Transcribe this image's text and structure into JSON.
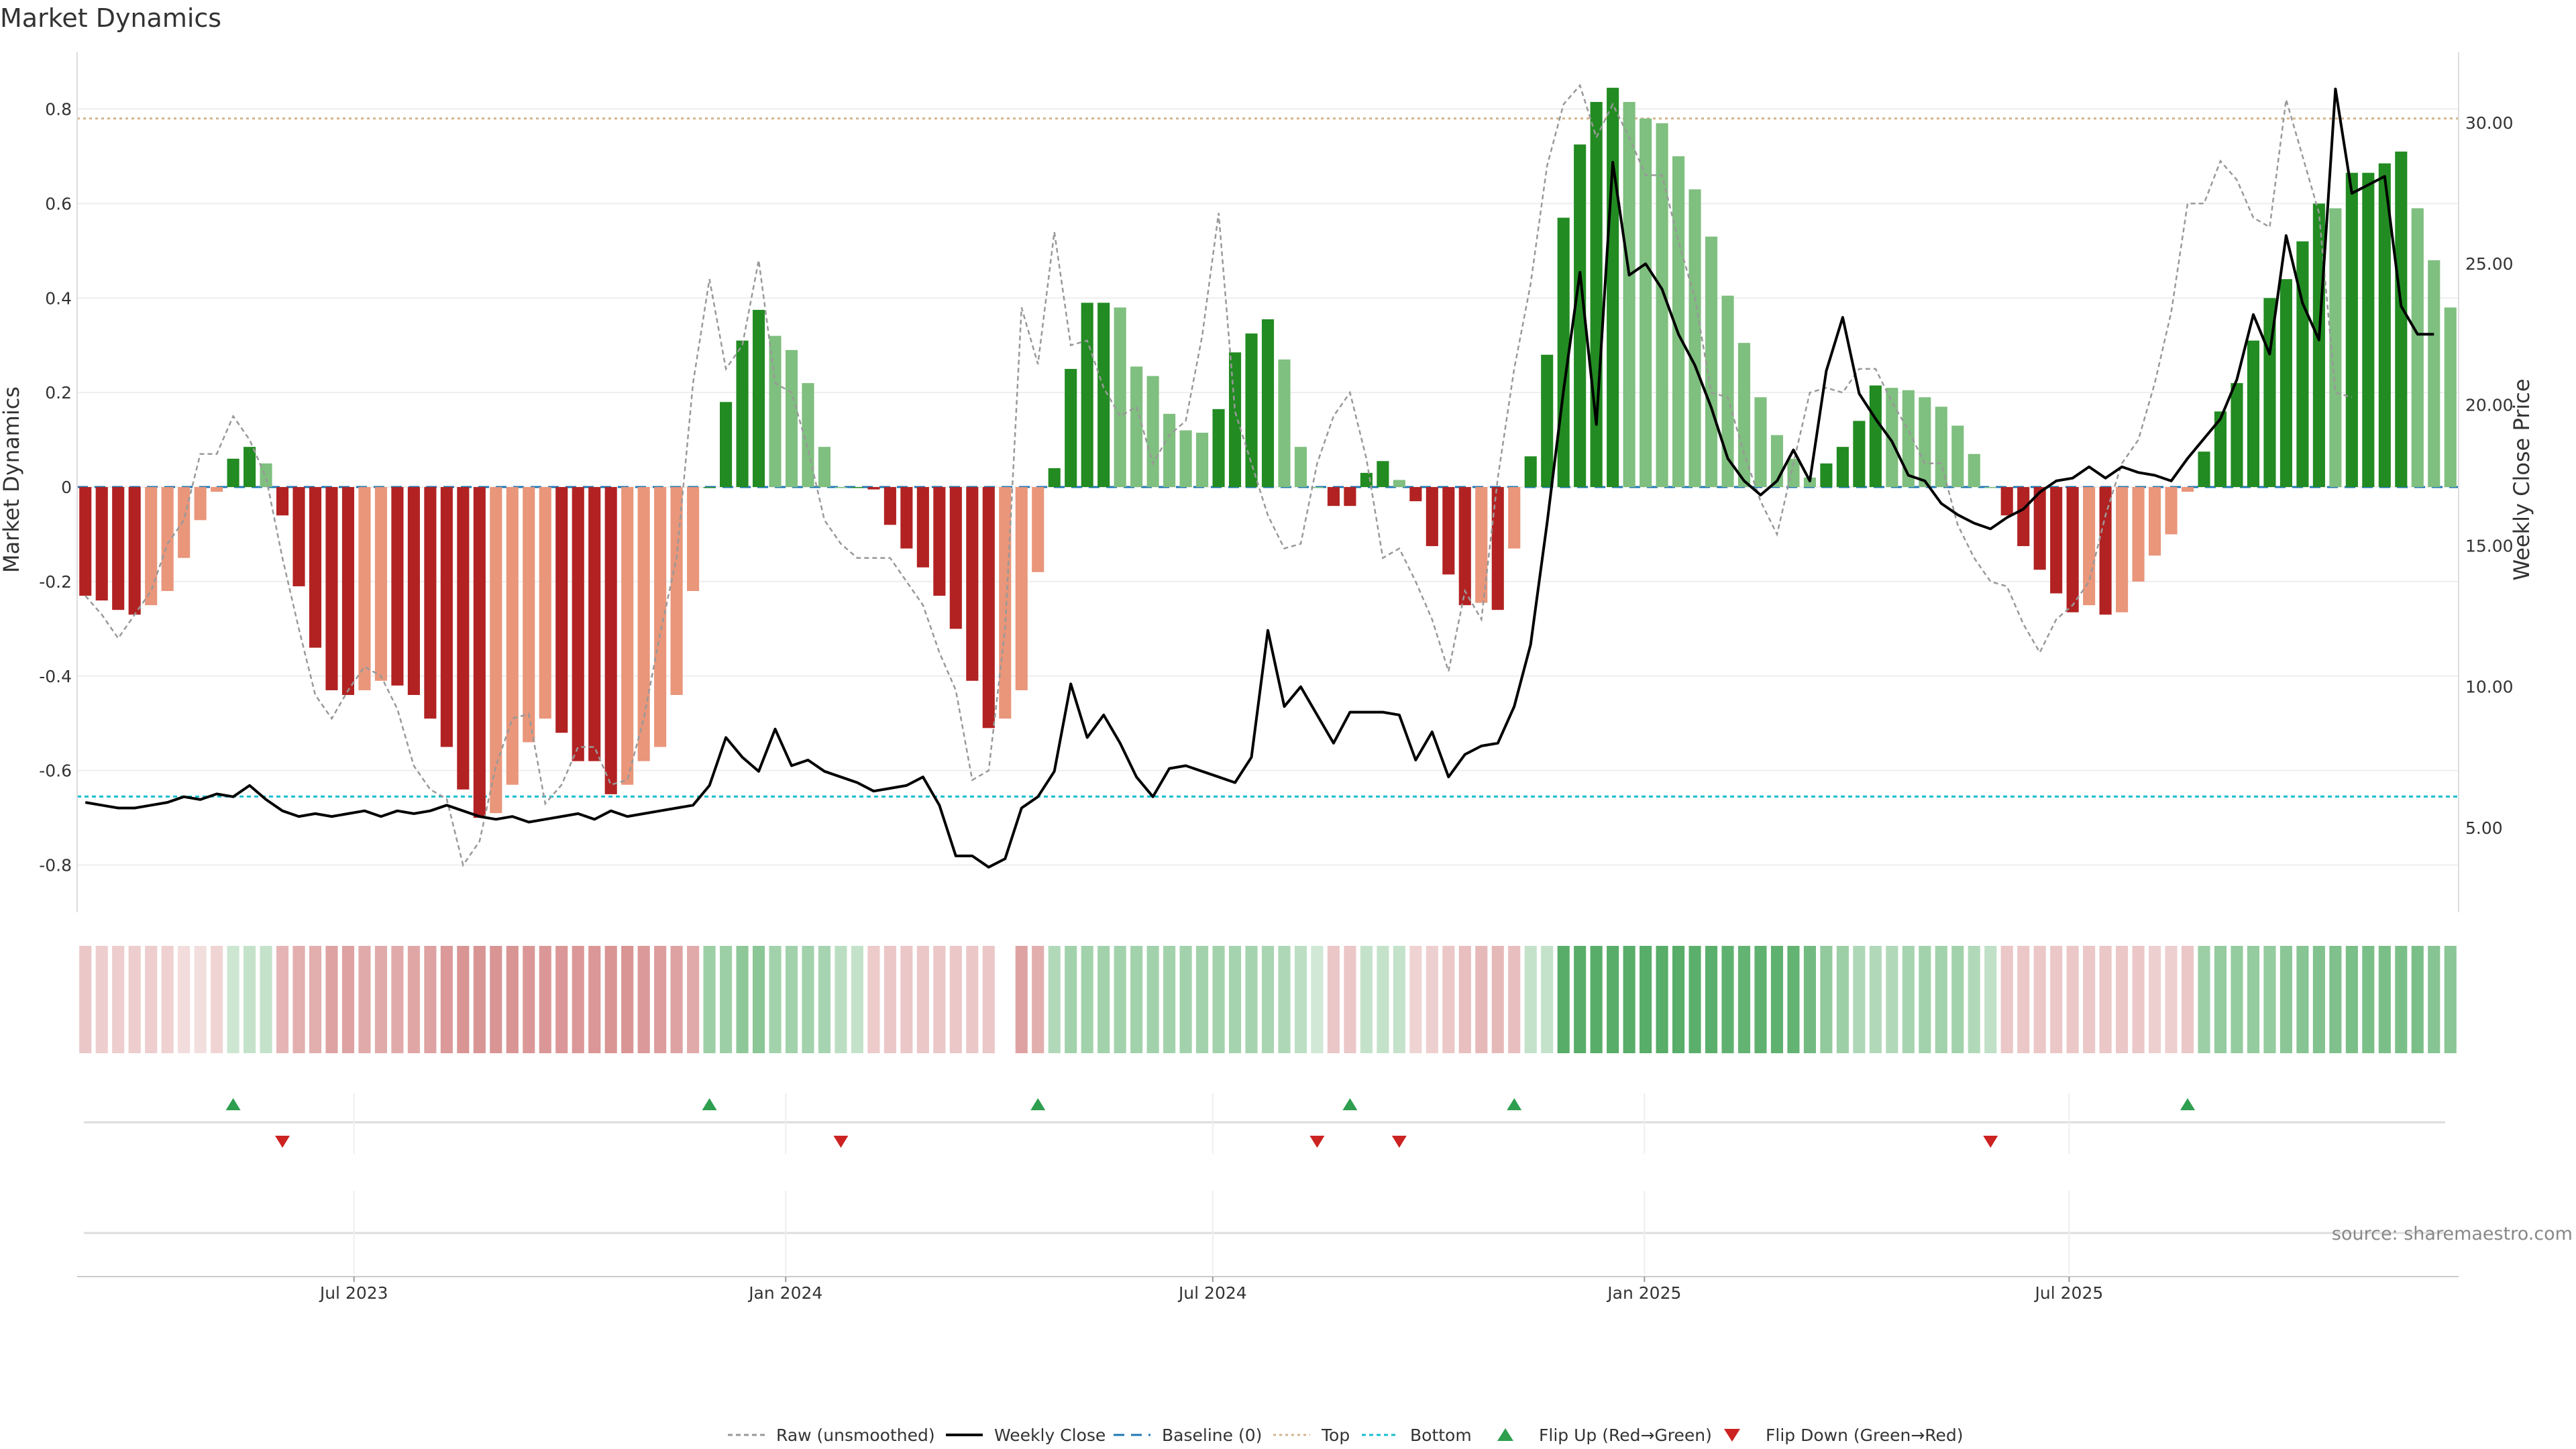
{
  "chart_data": {
    "type": "bar",
    "title": "Market Dynamics",
    "ylabel": "Market Dynamics",
    "y2label": "Weekly Close Price",
    "ylim": [
      -0.9,
      0.92
    ],
    "y2lim": [
      2.0,
      32.5
    ],
    "yticks": [
      "0.8",
      "0.6",
      "0.4",
      "0.2",
      "0",
      "-0.2",
      "-0.4",
      "-0.6",
      "-0.8"
    ],
    "ytick_values": [
      0.8,
      0.6,
      0.4,
      0.2,
      0,
      -0.2,
      -0.4,
      -0.6,
      -0.8
    ],
    "y2ticks": [
      "30.00",
      "25.00",
      "20.00",
      "15.00",
      "10.00",
      "5.00"
    ],
    "y2tick_values": [
      30,
      25,
      20,
      15,
      10,
      5
    ],
    "x_start": "2023-03-05",
    "x_end": "2025-11-27",
    "x_step_days": 7,
    "xticks": [
      "Jul 2023",
      "Jan 2024",
      "Jul 2024",
      "Jan 2025",
      "Jul 2025"
    ],
    "xtick_dates": [
      "2023-07-01",
      "2024-01-01",
      "2024-07-01",
      "2025-01-01",
      "2025-07-01"
    ],
    "top_level": 0.78,
    "bottom_level": -0.655,
    "baseline": 0,
    "grid": true,
    "smoothed": [
      -0.23,
      -0.24,
      -0.26,
      -0.27,
      -0.25,
      -0.22,
      -0.15,
      -0.07,
      -0.01,
      0.06,
      0.085,
      0.05,
      -0.06,
      -0.21,
      -0.34,
      -0.43,
      -0.44,
      -0.43,
      -0.41,
      -0.42,
      -0.44,
      -0.49,
      -0.55,
      -0.64,
      -0.7,
      -0.69,
      -0.63,
      -0.54,
      -0.49,
      -0.52,
      -0.58,
      -0.58,
      -0.65,
      -0.63,
      -0.58,
      -0.55,
      -0.44,
      -0.22,
      0,
      0.18,
      0.31,
      0.375,
      0.32,
      0.29,
      0.22,
      0.085,
      0,
      0,
      -0.005,
      -0.08,
      -0.13,
      -0.17,
      -0.23,
      -0.3,
      -0.41,
      -0.51,
      -0.49,
      -0.43,
      -0.18,
      0.04,
      0.25,
      0.39,
      0.39,
      0.38,
      0.255,
      0.235,
      0.155,
      0.12,
      0.115,
      0.165,
      0.285,
      0.325,
      0.355,
      0.27,
      0.085,
      0,
      -0.04,
      -0.04,
      0.03,
      0.055,
      0.015,
      -0.03,
      -0.125,
      -0.185,
      -0.25,
      -0.245,
      -0.26,
      -0.13,
      0.065,
      0.28,
      0.57,
      0.725,
      0.815,
      0.845,
      0.815,
      0.78,
      0.77,
      0.7,
      0.63,
      0.53,
      0.405,
      0.305,
      0.19,
      0.11,
      0.06,
      0.02,
      0.05,
      0.085,
      0.14,
      0.215,
      0.21,
      0.205,
      0.19,
      0.17,
      0.13,
      0.07,
      0,
      -0.06,
      -0.125,
      -0.175,
      -0.225,
      -0.265,
      -0.25,
      -0.27,
      -0.265,
      -0.2,
      -0.145,
      -0.1,
      -0.01,
      0.075,
      0.16,
      0.22,
      0.31,
      0.4,
      0.44,
      0.52,
      0.6,
      0.59,
      0.665,
      0.665,
      0.685,
      0.71,
      0.59,
      0.48,
      0.38
    ],
    "raw": [
      -0.23,
      -0.27,
      -0.32,
      -0.27,
      -0.22,
      -0.12,
      -0.07,
      0.07,
      0.07,
      0.15,
      0.1,
      0.02,
      -0.15,
      -0.3,
      -0.44,
      -0.49,
      -0.43,
      -0.38,
      -0.4,
      -0.47,
      -0.59,
      -0.64,
      -0.66,
      -0.8,
      -0.75,
      -0.59,
      -0.49,
      -0.48,
      -0.67,
      -0.63,
      -0.55,
      -0.55,
      -0.63,
      -0.62,
      -0.49,
      -0.31,
      -0.15,
      0.22,
      0.44,
      0.25,
      0.3,
      0.48,
      0.22,
      0.2,
      0.08,
      -0.07,
      -0.12,
      -0.15,
      -0.15,
      -0.15,
      -0.2,
      -0.25,
      -0.35,
      -0.43,
      -0.62,
      -0.6,
      -0.3,
      0.38,
      0.26,
      0.54,
      0.3,
      0.31,
      0.21,
      0.15,
      0.17,
      0.05,
      0.11,
      0.14,
      0.32,
      0.58,
      0.16,
      0.05,
      -0.06,
      -0.13,
      -0.12,
      0.05,
      0.15,
      0.2,
      0.06,
      -0.15,
      -0.13,
      -0.2,
      -0.28,
      -0.39,
      -0.22,
      -0.28,
      0.02,
      0.25,
      0.43,
      0.68,
      0.81,
      0.85,
      0.74,
      0.81,
      0.74,
      0.66,
      0.66,
      0.52,
      0.4,
      0.2,
      0.19,
      0.07,
      -0.03,
      -0.1,
      0.05,
      0.2,
      0.21,
      0.2,
      0.25,
      0.25,
      0.18,
      0.12,
      0.05,
      0.05,
      -0.08,
      -0.15,
      -0.2,
      -0.21,
      -0.29,
      -0.35,
      -0.28,
      -0.25,
      -0.2,
      -0.06,
      0.05,
      0.1,
      0.22,
      0.37,
      0.6,
      0.6,
      0.69,
      0.65,
      0.57,
      0.55,
      0.82,
      0.7,
      0.58,
      0.2,
      0.19
    ],
    "close": [
      5.9,
      5.8,
      5.7,
      5.7,
      5.8,
      5.9,
      6.1,
      6.0,
      6.2,
      6.1,
      6.5,
      6.0,
      5.6,
      5.4,
      5.5,
      5.4,
      5.5,
      5.6,
      5.4,
      5.6,
      5.5,
      5.6,
      5.8,
      5.6,
      5.4,
      5.3,
      5.4,
      5.2,
      5.3,
      5.4,
      5.5,
      5.3,
      5.6,
      5.4,
      5.5,
      5.6,
      5.7,
      5.8,
      6.5,
      8.2,
      7.5,
      7.0,
      8.5,
      7.2,
      7.4,
      7.0,
      6.8,
      6.6,
      6.3,
      6.4,
      6.5,
      6.8,
      5.8,
      4.0,
      4.0,
      3.6,
      3.9,
      5.7,
      6.1,
      7.0,
      10.1,
      8.2,
      9.0,
      8.0,
      6.8,
      6.1,
      7.1,
      7.2,
      7.0,
      6.8,
      6.6,
      7.5,
      12.0,
      9.3,
      10.0,
      9.0,
      8.0,
      9.1,
      9.1,
      9.1,
      9.0,
      7.4,
      8.4,
      6.8,
      7.6,
      7.9,
      8.0,
      9.3,
      11.5,
      15.8,
      20.5,
      24.7,
      19.3,
      28.6,
      24.6,
      25.0,
      24.1,
      22.5,
      21.4,
      19.9,
      18.1,
      17.3,
      16.8,
      17.3,
      18.4,
      17.3,
      21.2,
      23.1,
      20.4,
      19.5,
      18.7,
      17.5,
      17.3,
      16.5,
      16.1,
      15.8,
      15.6,
      16.0,
      16.3,
      16.9,
      17.3,
      17.4,
      17.8,
      17.4,
      17.8,
      17.6,
      17.5,
      17.3,
      18.1,
      18.8,
      19.5,
      20.9,
      23.2,
      21.8,
      26.0,
      23.6,
      22.3,
      31.2,
      27.5,
      27.8,
      28.1,
      23.5,
      22.5,
      22.5
    ],
    "strength": [
      0.3,
      0.27,
      0.27,
      0.27,
      0.27,
      0.25,
      0.19,
      0.18,
      0.23,
      0.26,
      0.3,
      0.3,
      0.4,
      0.44,
      0.44,
      0.5,
      0.5,
      0.46,
      0.46,
      0.46,
      0.48,
      0.5,
      0.55,
      0.58,
      0.58,
      0.58,
      0.58,
      0.56,
      0.56,
      0.56,
      0.56,
      0.56,
      0.58,
      0.58,
      0.55,
      0.53,
      0.5,
      0.46,
      0.5,
      0.5,
      0.58,
      0.6,
      0.48,
      0.48,
      0.48,
      0.45,
      0.35,
      0.3,
      0.28,
      0.3,
      0.3,
      0.3,
      0.3,
      0.3,
      0.3,
      0.3,
      null,
      0.5,
      0.44,
      0.4,
      0.48,
      0.48,
      0.48,
      0.48,
      0.48,
      0.48,
      0.48,
      0.48,
      0.48,
      0.48,
      0.46,
      0.46,
      0.44,
      0.42,
      0.34,
      0.24,
      0.3,
      0.3,
      0.3,
      0.3,
      0.3,
      0.24,
      0.26,
      0.3,
      0.35,
      0.38,
      0.38,
      0.35,
      0.3,
      0.3,
      0.86,
      0.86,
      0.86,
      0.86,
      0.86,
      0.86,
      0.86,
      0.86,
      0.84,
      0.84,
      0.82,
      0.8,
      0.82,
      0.82,
      0.8,
      0.72,
      0.56,
      0.5,
      0.42,
      0.4,
      0.4,
      0.45,
      0.48,
      0.48,
      0.48,
      0.4,
      0.32,
      0.3,
      0.3,
      0.3,
      0.3,
      0.3,
      0.3,
      0.3,
      0.3,
      0.3,
      0.26,
      0.26,
      0.3,
      0.5,
      0.55,
      0.55,
      0.55,
      0.55,
      0.6,
      0.62,
      0.64,
      0.66,
      0.68,
      0.68,
      0.68,
      0.68,
      0.68,
      0.62,
      0.6
    ],
    "flip_up_index": [
      9,
      38,
      58,
      77,
      87,
      128
    ],
    "flip_down_index": [
      12,
      46,
      75,
      80,
      116
    ],
    "legend": [
      "Raw (unsmoothed)",
      "Weekly Close",
      "Baseline (0)",
      "Top",
      "Bottom",
      "Flip Up (Red→Green)",
      "Flip Down (Green→Red)"
    ],
    "source": "source: sharemaestro.com",
    "colors": {
      "strong_green": "#228b22",
      "weak_green": "#7fbf7f",
      "strong_red": "#b22222",
      "weak_red": "#e9967a",
      "close_line": "#000000",
      "raw_line": "#999999",
      "baseline": "#1f77b4",
      "top_line": "#d2b48c",
      "bottom_line": "#17becf",
      "flip_up": "#2e9e4f",
      "flip_down": "#cc2222"
    }
  }
}
